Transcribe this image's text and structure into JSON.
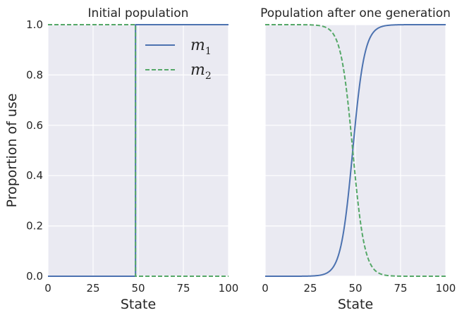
{
  "chart_data": [
    {
      "type": "line",
      "title": "Initial population",
      "xlabel": "State",
      "ylabel": "Proportion of use",
      "xlim": [
        0,
        100
      ],
      "ylim": [
        0,
        1
      ],
      "xticks": [
        "0",
        "25",
        "50",
        "75",
        "100"
      ],
      "yticks": [
        "0.0",
        "0.2",
        "0.4",
        "0.6",
        "0.8",
        "1.0"
      ],
      "grid": true,
      "legend": "top-right",
      "series": [
        {
          "name": "m1",
          "color": "#4c72b0",
          "style": "solid",
          "points": [
            [
              0,
              0
            ],
            [
              48.5,
              0
            ],
            [
              48.5,
              1
            ],
            [
              100,
              1
            ]
          ]
        },
        {
          "name": "m2",
          "color": "#55a868",
          "style": "dashed",
          "points": [
            [
              0,
              1
            ],
            [
              48.5,
              1
            ],
            [
              48.5,
              0
            ],
            [
              100,
              0
            ]
          ]
        }
      ]
    },
    {
      "type": "line",
      "title": "Population after one generation",
      "xlabel": "State",
      "xlim": [
        0,
        100
      ],
      "ylim": [
        0,
        1
      ],
      "xticks": [
        "0",
        "25",
        "50",
        "75",
        "100"
      ],
      "grid": true,
      "series": [
        {
          "name": "m1",
          "color": "#4c72b0",
          "style": "solid",
          "sigmoid": {
            "center": 48.5,
            "scale": 3.3
          }
        },
        {
          "name": "m2",
          "color": "#55a868",
          "style": "dashed",
          "sigmoid": {
            "center": 48.5,
            "scale": 3.3,
            "inverted": true
          }
        }
      ]
    }
  ],
  "legend": {
    "entries": [
      {
        "base": "m",
        "sub": "1"
      },
      {
        "base": "m",
        "sub": "2"
      }
    ]
  }
}
